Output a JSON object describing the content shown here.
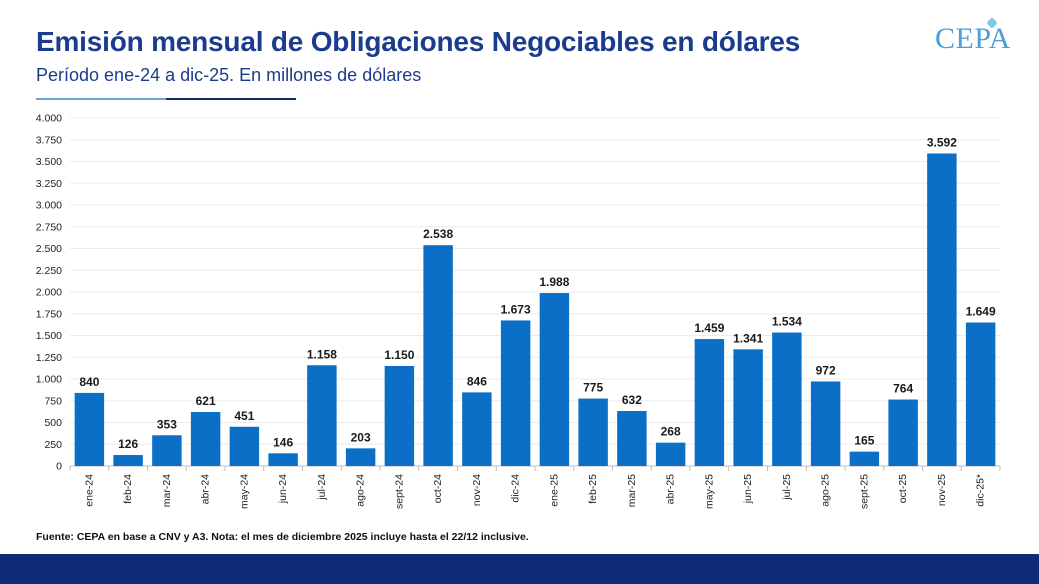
{
  "header": {
    "title": "Emisión mensual de Obligaciones Negociables en dólares",
    "subtitle": "Período ene-24 a dic-25. En millones de dólares",
    "logo": "CEPA"
  },
  "footer": {
    "source": "Fuente: CEPA en base a CNV y A3. Nota: el mes de diciembre 2025 incluye hasta el 22/12 inclusive."
  },
  "colors": {
    "bar": "#0b6fc8",
    "title": "#1b3c8c",
    "footer_bar": "#0f2b78"
  },
  "chart_data": {
    "type": "bar",
    "title": "Emisión mensual de Obligaciones Negociables en dólares",
    "subtitle": "Período ene-24 a dic-25. En millones de dólares",
    "categories": [
      "ene-24",
      "feb-24",
      "mar-24",
      "abr-24",
      "may-24",
      "jun-24",
      "jul-24",
      "ago-24",
      "sept-24",
      "oct-24",
      "nov-24",
      "dic-24",
      "ene-25",
      "feb-25",
      "mar-25",
      "abr-25",
      "may-25",
      "jun-25",
      "jul-25",
      "ago-25",
      "sept-25",
      "oct-25",
      "nov-25",
      "dic-25*"
    ],
    "values": [
      840,
      126,
      353,
      621,
      451,
      146,
      1158,
      203,
      1150,
      2538,
      846,
      1673,
      1988,
      775,
      632,
      268,
      1459,
      1341,
      1534,
      972,
      165,
      764,
      3592,
      1649
    ],
    "data_labels": [
      "840",
      "126",
      "353",
      "621",
      "451",
      "146",
      "1.158",
      "203",
      "1.150",
      "2.538",
      "846",
      "1.673",
      "1.988",
      "775",
      "632",
      "268",
      "1.459",
      "1.341",
      "1.534",
      "972",
      "165",
      "764",
      "3.592",
      "1.649"
    ],
    "ylim": [
      0,
      4000
    ],
    "yticks": [
      0,
      250,
      500,
      750,
      1000,
      1250,
      1500,
      1750,
      2000,
      2250,
      2500,
      2750,
      3000,
      3250,
      3500,
      3750,
      4000
    ],
    "ytick_labels": [
      "0",
      "250",
      "500",
      "750",
      "1.000",
      "1.250",
      "1.500",
      "1.750",
      "2.000",
      "2.250",
      "2.500",
      "2.750",
      "3.000",
      "3.250",
      "3.500",
      "3.750",
      "4.000"
    ],
    "grid": true,
    "xlabel": "",
    "ylabel": ""
  }
}
